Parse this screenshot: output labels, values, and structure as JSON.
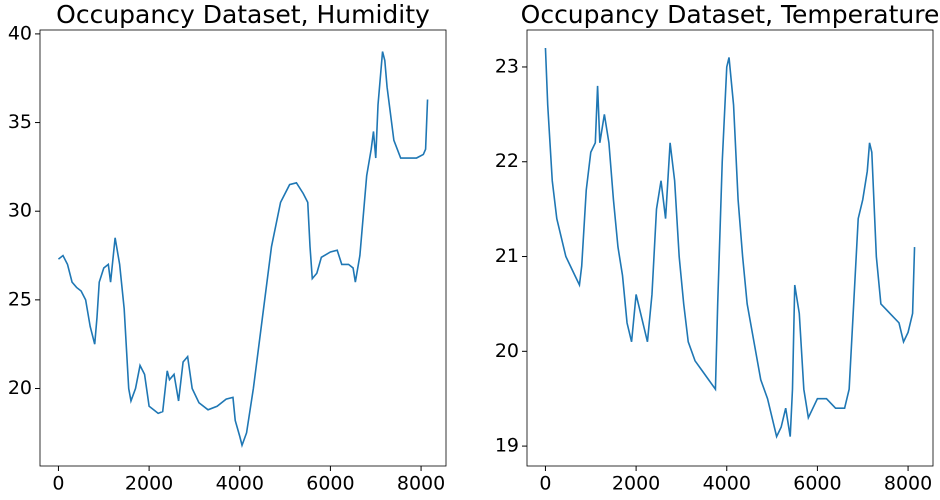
{
  "chart_data": [
    {
      "type": "line",
      "title": "Occupancy Dataset, Humidity",
      "x": [
        0,
        100,
        200,
        300,
        400,
        500,
        600,
        700,
        800,
        850,
        900,
        1000,
        1100,
        1150,
        1250,
        1350,
        1450,
        1550,
        1600,
        1700,
        1800,
        1900,
        2000,
        2100,
        2200,
        2300,
        2400,
        2450,
        2550,
        2650,
        2750,
        2850,
        2950,
        3100,
        3300,
        3500,
        3700,
        3850,
        3900,
        4000,
        4050,
        4150,
        4300,
        4500,
        4700,
        4900,
        5100,
        5250,
        5400,
        5500,
        5550,
        5600,
        5700,
        5800,
        6000,
        6150,
        6250,
        6400,
        6500,
        6550,
        6650,
        6800,
        6900,
        6950,
        7000,
        7050,
        7150,
        7200,
        7250,
        7400,
        7550,
        7700,
        7900,
        8050,
        8100,
        8143
      ],
      "series": [
        {
          "color": "#1f77b4",
          "values": [
            27.3,
            27.5,
            27.0,
            26.0,
            25.7,
            25.5,
            25.0,
            23.5,
            22.5,
            24.0,
            26.0,
            26.8,
            27.0,
            26.0,
            28.5,
            27.0,
            24.5,
            20.0,
            19.3,
            20.0,
            21.3,
            20.8,
            19.0,
            18.8,
            18.6,
            18.7,
            21.0,
            20.5,
            20.8,
            19.3,
            21.5,
            21.8,
            20.0,
            19.2,
            18.8,
            19.0,
            19.4,
            19.5,
            18.2,
            17.3,
            16.8,
            17.5,
            20.0,
            24.0,
            28.0,
            30.5,
            31.5,
            31.6,
            31.0,
            30.5,
            28.0,
            26.2,
            26.5,
            27.4,
            27.7,
            27.8,
            27.0,
            27.0,
            26.8,
            26.0,
            27.5,
            32.0,
            33.5,
            34.5,
            33.0,
            36.0,
            39.0,
            38.5,
            37.0,
            34.0,
            33.0,
            33.0,
            33.0,
            33.2,
            33.5,
            36.3
          ]
        }
      ],
      "xlim": [
        -407,
        8550
      ],
      "ylim": [
        15.63,
        40.22
      ],
      "xticks": [
        0,
        2000,
        4000,
        6000,
        8000
      ],
      "yticks": [
        20,
        25,
        30,
        35,
        40
      ]
    },
    {
      "type": "line",
      "title": "Occupancy Dataset, Temperature",
      "x": [
        0,
        50,
        150,
        250,
        350,
        450,
        550,
        650,
        750,
        800,
        900,
        1000,
        1100,
        1150,
        1200,
        1300,
        1400,
        1500,
        1600,
        1700,
        1800,
        1900,
        2000,
        2100,
        2200,
        2250,
        2350,
        2450,
        2550,
        2650,
        2750,
        2850,
        2950,
        3050,
        3150,
        3300,
        3450,
        3600,
        3750,
        3800,
        3900,
        4000,
        4050,
        4150,
        4250,
        4350,
        4450,
        4600,
        4750,
        4900,
        5000,
        5100,
        5200,
        5300,
        5400,
        5450,
        5500,
        5600,
        5700,
        5800,
        5900,
        6000,
        6200,
        6400,
        6600,
        6700,
        6800,
        6900,
        7000,
        7100,
        7150,
        7200,
        7300,
        7400,
        7600,
        7800,
        7900,
        8000,
        8100,
        8143
      ],
      "series": [
        {
          "color": "#1f77b4",
          "values": [
            23.2,
            22.6,
            21.8,
            21.4,
            21.2,
            21.0,
            20.9,
            20.8,
            20.7,
            20.9,
            21.7,
            22.1,
            22.2,
            22.8,
            22.2,
            22.5,
            22.2,
            21.6,
            21.1,
            20.8,
            20.3,
            20.1,
            20.6,
            20.4,
            20.2,
            20.1,
            20.6,
            21.5,
            21.8,
            21.4,
            22.2,
            21.8,
            21.0,
            20.5,
            20.1,
            19.9,
            19.8,
            19.7,
            19.6,
            20.5,
            22.0,
            23.0,
            23.1,
            22.6,
            21.6,
            21.0,
            20.5,
            20.1,
            19.7,
            19.5,
            19.3,
            19.1,
            19.2,
            19.4,
            19.1,
            19.6,
            20.7,
            20.4,
            19.6,
            19.3,
            19.4,
            19.5,
            19.5,
            19.4,
            19.4,
            19.6,
            20.5,
            21.4,
            21.6,
            21.9,
            22.2,
            22.1,
            21.0,
            20.5,
            20.4,
            20.3,
            20.1,
            20.2,
            20.4,
            21.1
          ]
        }
      ],
      "xlim": [
        -407,
        8550
      ],
      "ylim": [
        18.79,
        23.39
      ],
      "xticks": [
        0,
        2000,
        4000,
        6000,
        8000
      ],
      "yticks": [
        19,
        20,
        21,
        22,
        23
      ]
    }
  ]
}
